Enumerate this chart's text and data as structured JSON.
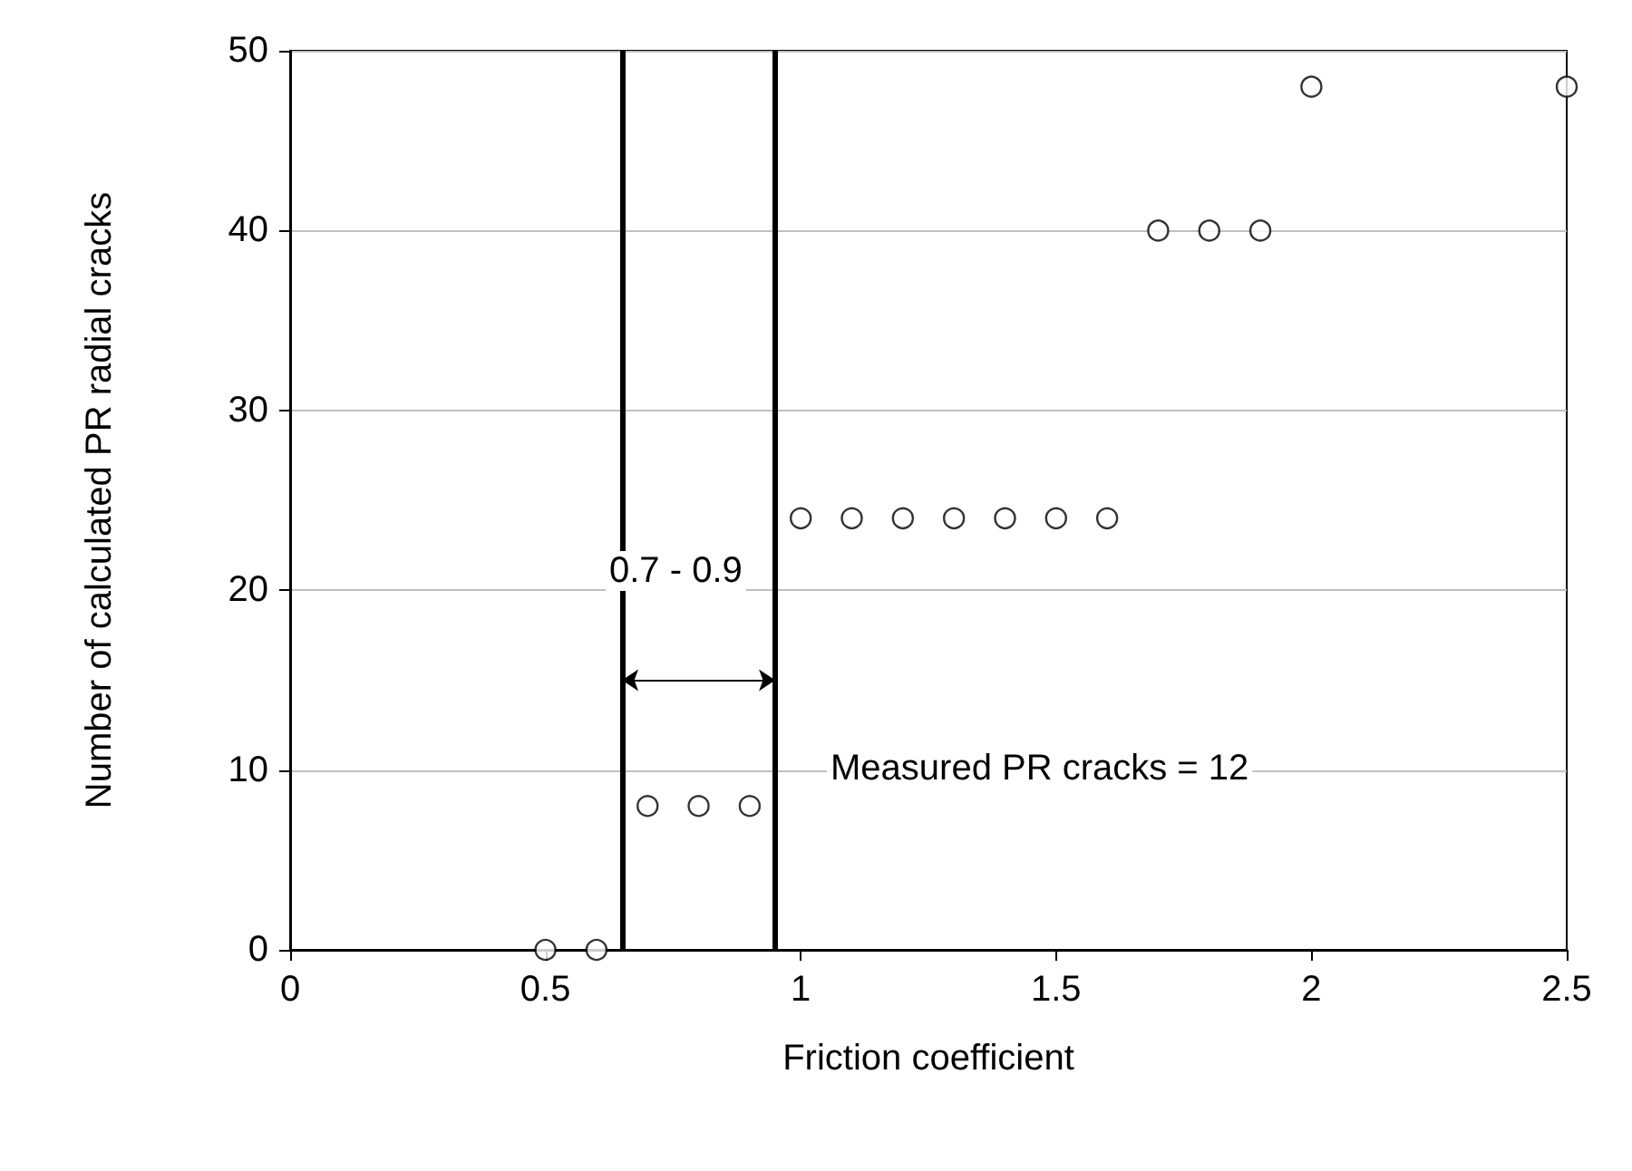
{
  "chart_data": {
    "type": "scatter",
    "xlabel": "Friction coefficient",
    "ylabel": "Number of calculated PR radial cracks",
    "x": [
      0.5,
      0.6,
      0.7,
      0.8,
      0.9,
      1.0,
      1.1,
      1.2,
      1.3,
      1.4,
      1.5,
      1.6,
      1.7,
      1.8,
      1.9,
      2.0,
      2.5
    ],
    "series": [
      {
        "color": "#000000",
        "values": [
          0,
          0,
          8,
          8,
          8,
          24,
          24,
          24,
          24,
          24,
          24,
          24,
          40,
          40,
          40,
          48,
          48
        ]
      }
    ],
    "xlim": [
      0,
      2.5
    ],
    "xticks": [
      0,
      0.5,
      1,
      1.5,
      2,
      2.5
    ],
    "ylim": [
      0,
      50
    ],
    "yticks": [
      0,
      10,
      20,
      30,
      40,
      50
    ],
    "grid": "y",
    "marker": "circle",
    "ref_lines": [
      {
        "axis": "x",
        "value": 0.65,
        "color": "#000000"
      },
      {
        "axis": "x",
        "value": 0.95,
        "color": "#000000"
      }
    ],
    "annotations": [
      "0.7 - 0.9",
      "Measured PR cracks = 12"
    ]
  }
}
